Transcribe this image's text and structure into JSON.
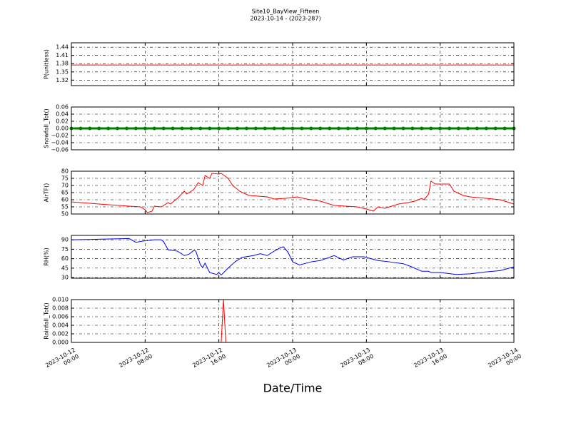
{
  "title": "Site10_BayView_Fifteen",
  "subtitle": "2023-10-14 - (2023-287)",
  "x_label": "Date/Time",
  "xlim": [
    "2023-10-12 00:00",
    "2023-10-14 00:00"
  ],
  "xticks": [
    {
      "value": "2023-10-12 00:00",
      "label": "2023-10-12\n00:00"
    },
    {
      "value": "2023-10-12 08:00",
      "label": "2023-10-12\n08:00"
    },
    {
      "value": "2023-10-12 16:00",
      "label": "2023-10-12\n16:00"
    },
    {
      "value": "2023-10-13 00:00",
      "label": "2023-10-13\n00:00"
    },
    {
      "value": "2023-10-13 08:00",
      "label": "2023-10-13\n08:00"
    },
    {
      "value": "2023-10-13 16:00",
      "label": "2023-10-13\n16:00"
    },
    {
      "value": "2023-10-14 00:00",
      "label": "2023-10-14\n00:00"
    }
  ],
  "chart_data": [
    {
      "type": "line",
      "y_label": "P(unitless)",
      "color": "#ff0000",
      "ylim": [
        1.3,
        1.456
      ],
      "yticks": [
        1.32,
        1.35,
        1.38,
        1.41,
        1.44
      ],
      "grid": true,
      "x": [
        "2023-10-12 00:00",
        "2023-10-14 00:00"
      ],
      "values": [
        1.375,
        1.375
      ]
    },
    {
      "type": "line",
      "y_label": "Snowfall_Tot()",
      "color": "#008000",
      "marker": "o",
      "ylim": [
        -0.06,
        0.06
      ],
      "grid": true,
      "yticks": [
        {
          "value": -0.06,
          "label": "−0.06"
        },
        {
          "value": -0.04,
          "label": "−0.04"
        },
        {
          "value": -0.02,
          "label": "−0.02"
        },
        {
          "value": 0,
          "label": "0.00"
        },
        0.02,
        0.04,
        0.06
      ],
      "x": [
        "2023-10-12 00:00",
        "2023-10-12 01:00",
        "2023-10-12 02:00",
        "2023-10-12 03:00",
        "2023-10-12 04:00",
        "2023-10-12 05:00",
        "2023-10-12 06:00",
        "2023-10-12 07:00",
        "2023-10-12 08:00",
        "2023-10-12 09:00",
        "2023-10-12 10:00",
        "2023-10-12 11:00",
        "2023-10-12 12:00",
        "2023-10-12 13:00",
        "2023-10-12 14:00",
        "2023-10-12 15:00",
        "2023-10-12 16:00",
        "2023-10-12 17:00",
        "2023-10-12 18:00",
        "2023-10-12 19:00",
        "2023-10-12 20:00",
        "2023-10-12 21:00",
        "2023-10-12 22:00",
        "2023-10-12 23:00",
        "2023-10-13 00:00",
        "2023-10-13 01:00",
        "2023-10-13 02:00",
        "2023-10-13 03:00",
        "2023-10-13 04:00",
        "2023-10-13 05:00",
        "2023-10-13 06:00",
        "2023-10-13 07:00",
        "2023-10-13 08:00",
        "2023-10-13 09:00",
        "2023-10-13 10:00",
        "2023-10-13 11:00",
        "2023-10-13 12:00",
        "2023-10-13 13:00",
        "2023-10-13 14:00",
        "2023-10-13 15:00",
        "2023-10-13 16:00",
        "2023-10-13 17:00",
        "2023-10-13 18:00",
        "2023-10-13 19:00",
        "2023-10-13 20:00",
        "2023-10-13 21:00",
        "2023-10-13 22:00",
        "2023-10-13 23:00",
        "2023-10-14 00:00"
      ],
      "values": [
        0,
        0,
        0,
        0,
        0,
        0,
        0,
        0,
        0,
        0,
        0,
        0,
        0,
        0,
        0,
        0,
        0,
        0,
        0,
        0,
        0,
        0,
        0,
        0,
        0,
        0,
        0,
        0,
        0,
        0,
        0,
        0,
        0,
        0,
        0,
        0,
        0,
        0,
        0,
        0,
        0,
        0,
        0,
        0,
        0,
        0,
        0,
        0,
        0
      ]
    },
    {
      "type": "line",
      "y_label": "AirTF()",
      "color": "#ff0000",
      "ylim": [
        50,
        80
      ],
      "yticks": [
        50,
        55,
        60,
        65,
        70,
        75,
        80
      ],
      "grid": true,
      "x": [
        "2023-10-12 00:00",
        "2023-10-12 03:00",
        "2023-10-12 06:15",
        "2023-10-12 07:30",
        "2023-10-12 08:00",
        "2023-10-12 08:15",
        "2023-10-12 08:45",
        "2023-10-12 09:00",
        "2023-10-12 09:45",
        "2023-10-12 10:30",
        "2023-10-12 10:45",
        "2023-10-12 11:30",
        "2023-10-12 12:15",
        "2023-10-12 12:30",
        "2023-10-12 13:15",
        "2023-10-12 13:45",
        "2023-10-12 14:15",
        "2023-10-12 14:30",
        "2023-10-12 15:00",
        "2023-10-12 15:15",
        "2023-10-12 16:00",
        "2023-10-12 16:15",
        "2023-10-12 17:00",
        "2023-10-12 17:30",
        "2023-10-12 18:15",
        "2023-10-12 19:15",
        "2023-10-12 21:15",
        "2023-10-12 22:00",
        "2023-10-12 23:15",
        "2023-10-13 00:30",
        "2023-10-13 01:30",
        "2023-10-13 03:00",
        "2023-10-13 04:30",
        "2023-10-13 07:00",
        "2023-10-13 08:00",
        "2023-10-13 08:45",
        "2023-10-13 09:15",
        "2023-10-13 10:00",
        "2023-10-13 10:45",
        "2023-10-13 11:30",
        "2023-10-13 12:30",
        "2023-10-13 13:15",
        "2023-10-13 14:00",
        "2023-10-13 14:15",
        "2023-10-13 14:45",
        "2023-10-13 15:00",
        "2023-10-13 15:30",
        "2023-10-13 16:15",
        "2023-10-13 17:00",
        "2023-10-13 17:30",
        "2023-10-13 18:30",
        "2023-10-13 19:15",
        "2023-10-13 21:00",
        "2023-10-13 22:30",
        "2023-10-14 00:00"
      ],
      "values": [
        58.5,
        57,
        55.5,
        55,
        53,
        51,
        52,
        55.5,
        55,
        58,
        57,
        61,
        66,
        64,
        67,
        72,
        70,
        77,
        75,
        78.5,
        78,
        78.5,
        75,
        70,
        66,
        63,
        62,
        60.5,
        61,
        62,
        60.5,
        59,
        56,
        55,
        53.5,
        52,
        55,
        54,
        55.5,
        57,
        58,
        59,
        61,
        60,
        64,
        73,
        71,
        71,
        71,
        66,
        63,
        62,
        61,
        60,
        57
      ]
    },
    {
      "type": "line",
      "y_label": "RH(%)",
      "color": "#0000ff",
      "ylim": [
        29,
        97
      ],
      "yticks": [
        30,
        45,
        60,
        75,
        90
      ],
      "grid": true,
      "x": [
        "2023-10-12 00:00",
        "2023-10-12 06:15",
        "2023-10-12 07:00",
        "2023-10-12 07:45",
        "2023-10-12 09:00",
        "2023-10-12 09:45",
        "2023-10-12 10:00",
        "2023-10-12 10:30",
        "2023-10-12 11:30",
        "2023-10-12 12:15",
        "2023-10-12 12:45",
        "2023-10-12 13:15",
        "2023-10-12 13:30",
        "2023-10-12 14:00",
        "2023-10-12 14:15",
        "2023-10-12 14:30",
        "2023-10-12 15:00",
        "2023-10-12 15:45",
        "2023-10-12 16:00",
        "2023-10-12 16:15",
        "2023-10-12 17:00",
        "2023-10-12 17:45",
        "2023-10-12 18:30",
        "2023-10-12 19:45",
        "2023-10-12 20:30",
        "2023-10-12 21:15",
        "2023-10-12 22:00",
        "2023-10-12 22:45",
        "2023-10-12 23:00",
        "2023-10-12 23:30",
        "2023-10-13 00:00",
        "2023-10-13 00:45",
        "2023-10-13 02:00",
        "2023-10-13 03:00",
        "2023-10-13 04:30",
        "2023-10-13 05:30",
        "2023-10-13 06:30",
        "2023-10-13 07:45",
        "2023-10-13 09:15",
        "2023-10-13 10:30",
        "2023-10-13 12:00",
        "2023-10-13 12:45",
        "2023-10-13 14:00",
        "2023-10-13 14:45",
        "2023-10-13 15:00",
        "2023-10-13 16:00",
        "2023-10-13 17:45",
        "2023-10-13 19:15",
        "2023-10-13 21:00",
        "2023-10-13 22:30",
        "2023-10-14 00:00"
      ],
      "values": [
        90,
        92,
        86,
        88,
        90,
        90,
        87,
        74,
        72,
        65,
        67,
        73,
        72,
        50,
        46,
        53,
        38,
        35,
        38,
        34,
        45,
        55,
        62,
        65,
        68,
        65,
        72,
        78,
        79,
        70,
        55,
        50,
        55,
        57,
        65,
        58,
        63,
        63,
        57,
        55,
        52,
        48,
        40,
        40,
        38,
        38,
        35,
        36,
        39,
        41,
        47
      ]
    },
    {
      "type": "line",
      "y_label": "Rainfall_Tot()",
      "color": "#ff0000",
      "ylim": [
        0,
        0.01
      ],
      "grid": true,
      "yticks": [
        {
          "value": 0,
          "label": "0.000"
        },
        0.002,
        0.004,
        0.006,
        0.008,
        {
          "value": 0.01,
          "label": "0.010"
        }
      ],
      "x": [
        "2023-10-12 00:00",
        "2023-10-12 16:15",
        "2023-10-12 16:30",
        "2023-10-12 16:45",
        "2023-10-14 00:00"
      ],
      "values": [
        0,
        0,
        0.01,
        0,
        0
      ]
    }
  ]
}
